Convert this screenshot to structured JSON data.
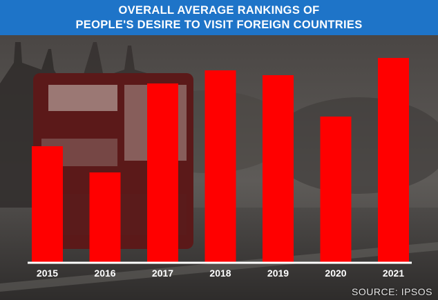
{
  "banner": {
    "line1": "OVERALL AVERAGE RANKINGS OF",
    "line2": "PEOPLE'S DESIRE TO VISIT FOREIGN COUNTRIES"
  },
  "source_text": "SOURCE: IPSOS",
  "chart_data": {
    "type": "bar",
    "title": "OVERALL AVERAGE RANKINGS OF PEOPLE'S DESIRE TO VISIT FOREIGN COUNTRIES",
    "categories": [
      "2015",
      "2016",
      "2017",
      "2018",
      "2019",
      "2020",
      "2021"
    ],
    "values": [
      168,
      130,
      259,
      278,
      271,
      211,
      296
    ],
    "ylim": [
      0,
      310
    ],
    "grid": false,
    "bar_color": "#ff0000",
    "xlabel": "",
    "ylabel": ""
  },
  "colors": {
    "banner": "#1e74c8",
    "axis": "#ffffff",
    "bar": "#ff0000"
  }
}
